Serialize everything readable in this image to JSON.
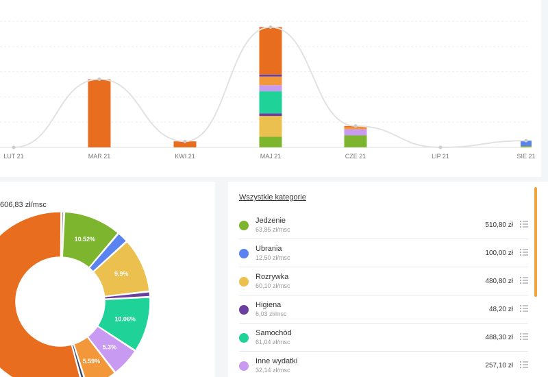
{
  "chart_data": {
    "type": "bar",
    "categories": [
      "LUT 21",
      "MAR 21",
      "KWI 21",
      "MAJ 21",
      "CZE 21",
      "LIP 21",
      "SIE 21"
    ],
    "series": [
      {
        "color": "#7db52f",
        "values": [
          0,
          0,
          0,
          80,
          90,
          0,
          10
        ]
      },
      {
        "color": "#5b83f0",
        "values": [
          0,
          0,
          0,
          0,
          0,
          0,
          40
        ]
      },
      {
        "color": "#ebc04f",
        "values": [
          0,
          0,
          0,
          155,
          0,
          0,
          0
        ]
      },
      {
        "color": "#6a3fa0",
        "values": [
          0,
          0,
          0,
          20,
          0,
          0,
          0
        ]
      },
      {
        "color": "#1ed298",
        "values": [
          0,
          0,
          0,
          165,
          0,
          0,
          0
        ]
      },
      {
        "color": "#c99af2",
        "values": [
          0,
          0,
          0,
          45,
          45,
          0,
          0
        ]
      },
      {
        "color": "#f2973a",
        "values": [
          0,
          0,
          0,
          65,
          15,
          0,
          0
        ]
      },
      {
        "color": "#6a3fa0",
        "values": [
          0,
          0,
          0,
          15,
          0,
          0,
          0
        ]
      },
      {
        "color": "#e86d1f",
        "values": [
          0,
          510,
          45,
          355,
          10,
          0,
          0
        ]
      }
    ],
    "totals": [
      0,
      510,
      45,
      900,
      160,
      0,
      50
    ],
    "ylim": [
      0,
      1000
    ],
    "grid": true
  },
  "donut": {
    "total_label": "606,83 zł/msc",
    "segments": [
      {
        "value": 0.5,
        "color": "#999999",
        "label": ""
      },
      {
        "value": 10.52,
        "color": "#7db52f",
        "label": "10.52%"
      },
      {
        "value": 2.06,
        "color": "#5b83f0",
        "label": ""
      },
      {
        "value": 9.9,
        "color": "#ebc04f",
        "label": "9.9%"
      },
      {
        "value": 0.99,
        "color": "#6a3fa0",
        "label": ""
      },
      {
        "value": 10.06,
        "color": "#1ed298",
        "label": "10.06%"
      },
      {
        "value": 5.3,
        "color": "#c99af2",
        "label": "5.3%"
      },
      {
        "value": 5.59,
        "color": "#f2973a",
        "label": "5.59%"
      },
      {
        "value": 0.74,
        "color": "#3b4a6b",
        "label": ""
      },
      {
        "value": 54.34,
        "color": "#e86d1f",
        "label": "%"
      }
    ]
  },
  "categories_list": {
    "title": "Wszystkie kategorie",
    "items": [
      {
        "name": "Jedzenie",
        "sub": "63,85 zł/msc",
        "value": "510,80 zł",
        "color": "#7db52f",
        "icon": "list-icon"
      },
      {
        "name": "Ubrania",
        "sub": "12,50 zł/msc",
        "value": "100,00 zł",
        "color": "#5b83f0",
        "icon": "list-icon"
      },
      {
        "name": "Rozrywka",
        "sub": "60,10 zł/msc",
        "value": "480,80 zł",
        "color": "#ebc04f",
        "icon": "list-icon"
      },
      {
        "name": "Higiena",
        "sub": "6,03 zł/msc",
        "value": "48,20 zł",
        "color": "#6a3fa0",
        "icon": "list-icon"
      },
      {
        "name": "Samochód",
        "sub": "61,04 zł/msc",
        "value": "488,30 zł",
        "color": "#1ed298",
        "icon": "list-icon"
      },
      {
        "name": "Inne wydatki",
        "sub": "32,14 zł/msc",
        "value": "257,10 zł",
        "color": "#c99af2",
        "icon": "list-icon"
      }
    ]
  }
}
